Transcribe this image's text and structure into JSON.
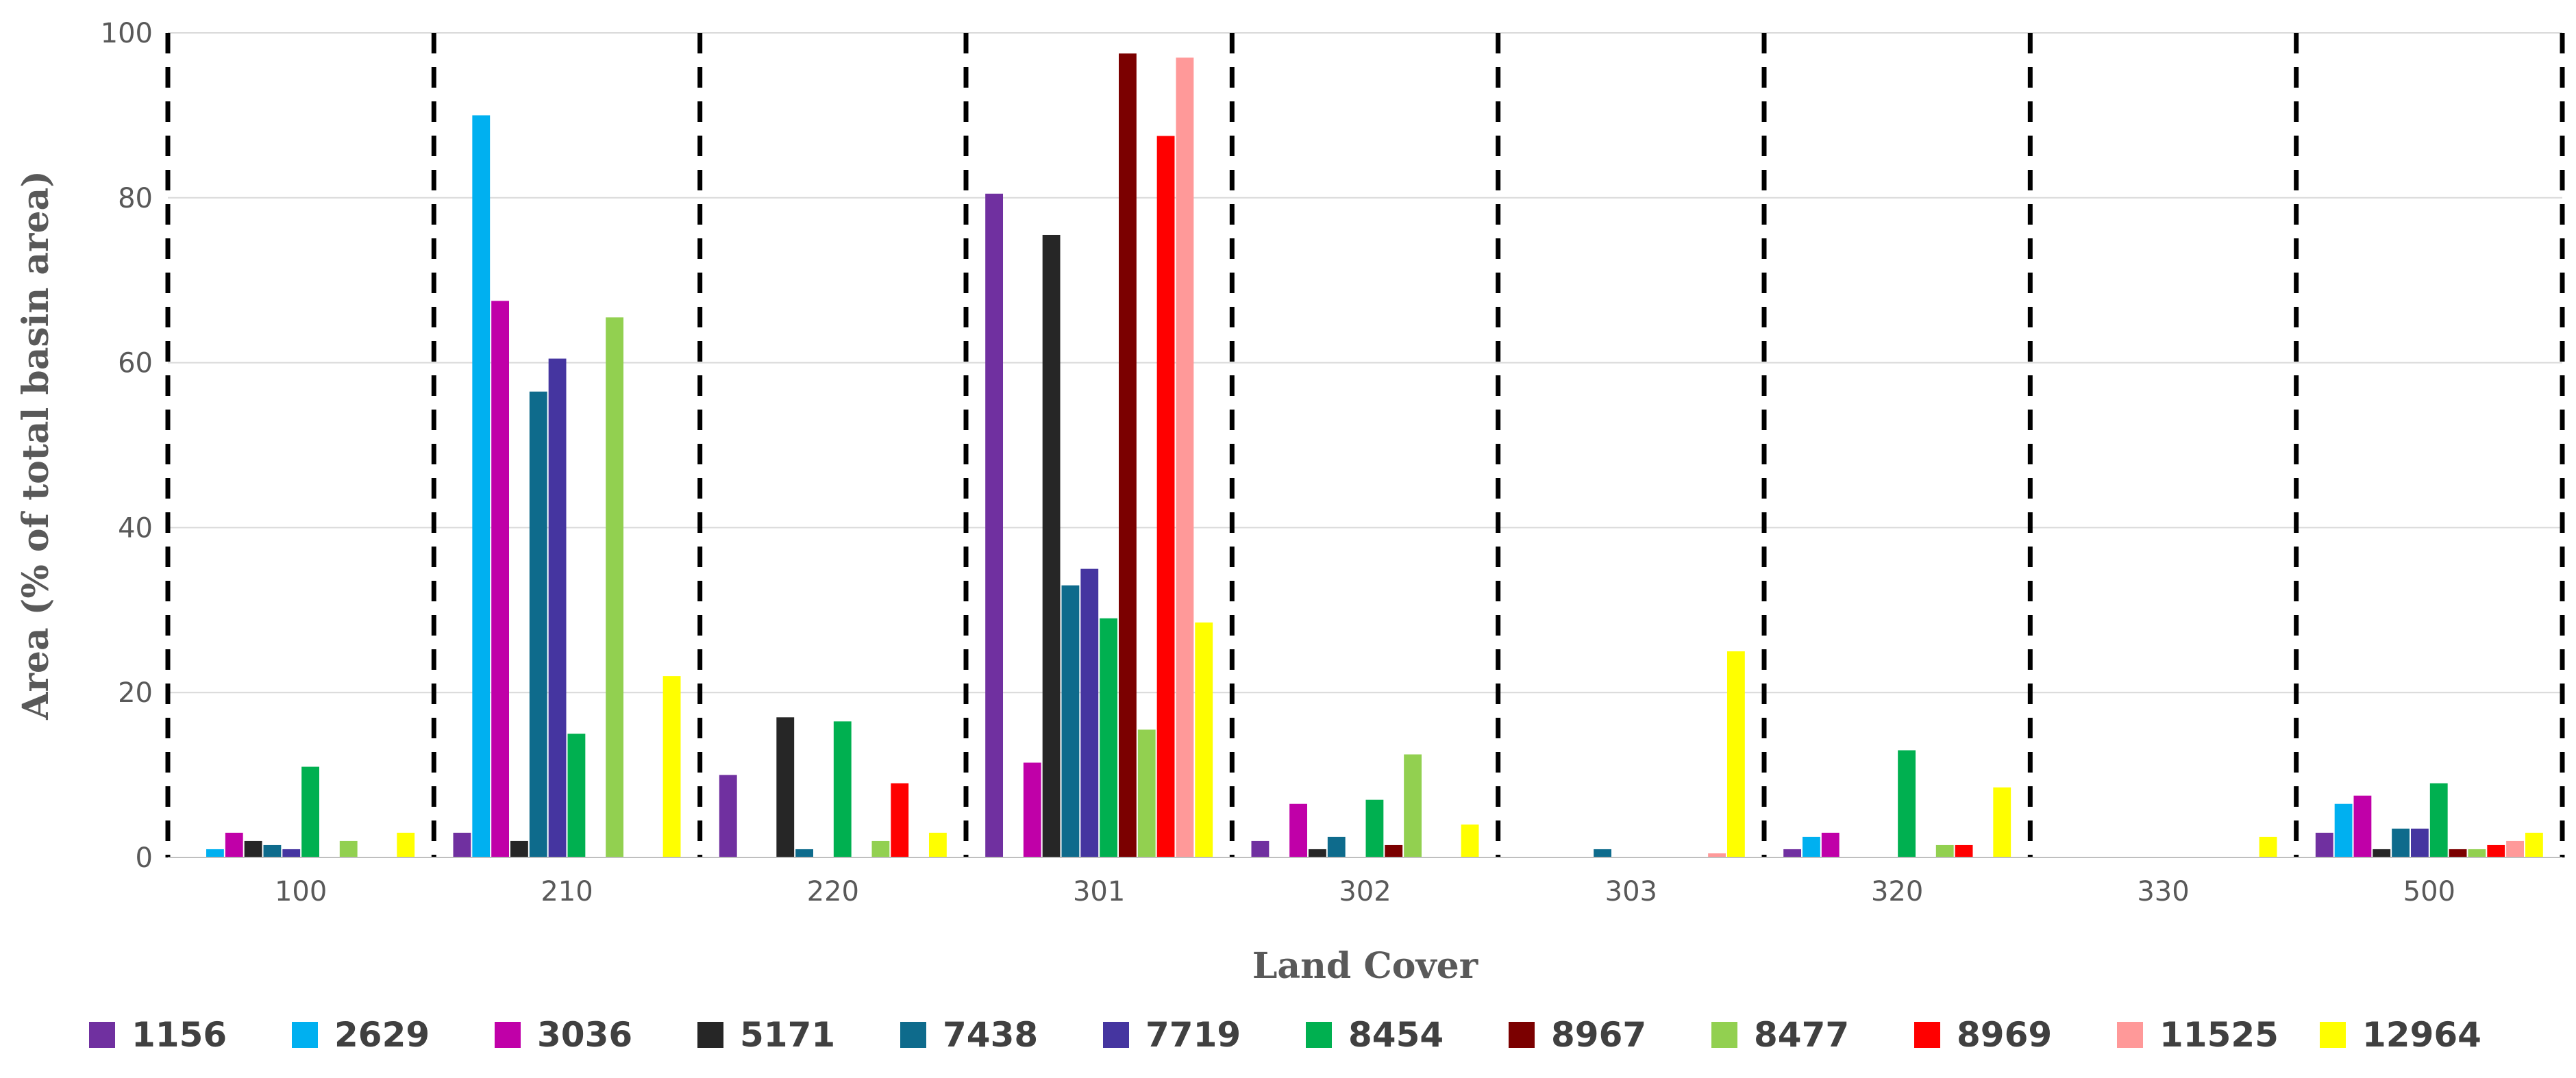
{
  "chart_data": {
    "type": "bar",
    "xlabel": "Land Cover",
    "ylabel": "Area  (% of total basin area)",
    "ylim": [
      0,
      100
    ],
    "yticks": [
      0,
      20,
      40,
      60,
      80,
      100
    ],
    "grid": true,
    "legend_position": "bottom",
    "categories": [
      "100",
      "210",
      "220",
      "301",
      "302",
      "303",
      "320",
      "330",
      "500"
    ],
    "series": [
      {
        "name": "1156",
        "color": "#7030A0",
        "values": [
          0,
          3,
          10,
          80.5,
          2,
          0,
          1,
          0,
          3
        ]
      },
      {
        "name": "2629",
        "color": "#00B0F0",
        "values": [
          1,
          90,
          0,
          0,
          0,
          0,
          2.5,
          0,
          6.5
        ]
      },
      {
        "name": "3036",
        "color": "#C000A8",
        "values": [
          3,
          67.5,
          0,
          11.5,
          6.5,
          0,
          3,
          0,
          7.5
        ]
      },
      {
        "name": "5171",
        "color": "#262626",
        "values": [
          2,
          2,
          17,
          75.5,
          1,
          0,
          0,
          0,
          1
        ]
      },
      {
        "name": "7438",
        "color": "#0E6B8C",
        "values": [
          1.5,
          56.5,
          1,
          33,
          2.5,
          1,
          0,
          0,
          3.5
        ]
      },
      {
        "name": "7719",
        "color": "#4535A0",
        "values": [
          1,
          60.5,
          0,
          35,
          0,
          0,
          0,
          0,
          3.5
        ]
      },
      {
        "name": "8454",
        "color": "#00B050",
        "values": [
          11,
          15,
          16.5,
          29,
          7,
          0,
          13,
          0,
          9
        ]
      },
      {
        "name": "8967",
        "color": "#7B0000",
        "values": [
          0,
          0,
          0,
          97.5,
          1.5,
          0,
          0,
          0,
          1
        ]
      },
      {
        "name": "8477",
        "color": "#92D050",
        "values": [
          2,
          65.5,
          2,
          15.5,
          12.5,
          0,
          1.5,
          0,
          1
        ]
      },
      {
        "name": "8969",
        "color": "#FF0000",
        "values": [
          0,
          0,
          9,
          87.5,
          0,
          0,
          1.5,
          0,
          1.5
        ]
      },
      {
        "name": "11525",
        "color": "#FF9999",
        "values": [
          0,
          0,
          0,
          97,
          0,
          0.5,
          0,
          0,
          2
        ]
      },
      {
        "name": "12964",
        "color": "#FFFF00",
        "values": [
          3,
          22,
          3,
          28.5,
          4,
          25,
          8.5,
          2.5,
          3
        ]
      }
    ]
  }
}
